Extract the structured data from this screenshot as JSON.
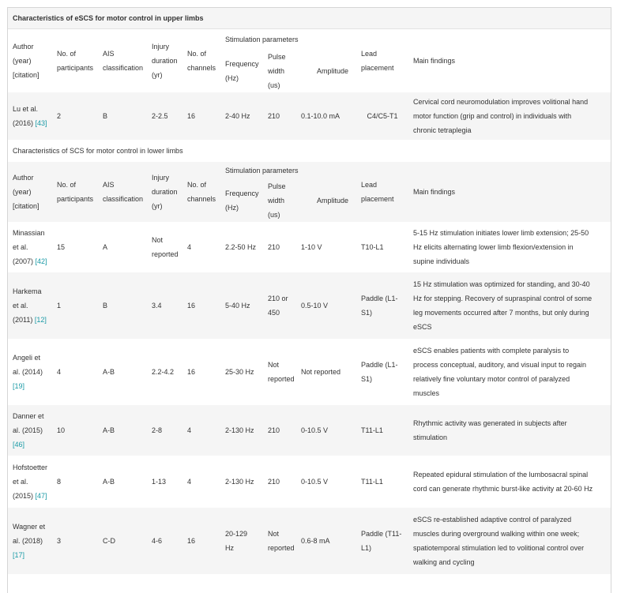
{
  "tables": [
    {
      "title": "Characteristics of eSCS for motor control in upper limbs",
      "headers": {
        "author": [
          "Author",
          "(year)",
          "[citation]"
        ],
        "participants": [
          "No. of",
          "participants"
        ],
        "ais": [
          "AIS",
          "classification"
        ],
        "duration": [
          "Injury",
          "duration",
          "(yr)"
        ],
        "channels": [
          "No. of",
          "channels"
        ],
        "stim": "Stimulation parameters",
        "frequency": [
          "Frequency",
          "(Hz)"
        ],
        "pulse": [
          "Pulse width",
          "(us)"
        ],
        "amplitude": "Amplitude",
        "lead": [
          "Lead",
          "placement"
        ],
        "findings": "Main findings"
      },
      "rows": [
        {
          "author": [
            "Lu et al.",
            "(2016) "
          ],
          "ref": "[43]",
          "participants": "2",
          "ais": "B",
          "duration": "2-2.5",
          "channels": "16",
          "frequency": "2-40 Hz",
          "pulse": [
            "210"
          ],
          "amplitude": "0.1-10.0 mA",
          "lead": [
            "C4/C5-T1"
          ],
          "findings": [
            "Cervical cord neuromodulation improves volitional hand",
            "motor function (grip and control) in individuals with",
            "chronic tetraplegia"
          ]
        }
      ]
    },
    {
      "title": "Characteristics of SCS for motor control in lower limbs",
      "headers": {
        "author": [
          "Author",
          "(year)",
          "[citation]"
        ],
        "participants": [
          "No. of",
          "participants"
        ],
        "ais": [
          "AIS",
          "classification"
        ],
        "duration": [
          "Injury",
          "duration",
          "(yr)"
        ],
        "channels": [
          "No. of",
          "channels"
        ],
        "stim": "Stimulation parameters",
        "frequency": [
          "Frequency",
          "(Hz)"
        ],
        "pulse": [
          "Pulse width",
          "(us)"
        ],
        "amplitude": "Amplitude",
        "lead": [
          "Lead",
          "placement"
        ],
        "findings": "Main findings"
      },
      "rows": [
        {
          "author": [
            "Minassian",
            "et al.",
            "(2007) "
          ],
          "ref": "[42]",
          "participants": "15",
          "ais": "A",
          "duration": [
            "Not",
            "reported"
          ],
          "channels": "4",
          "frequency": "2.2-50 Hz",
          "pulse": [
            "210"
          ],
          "amplitude": "1-10 V",
          "lead": [
            "T10-L1"
          ],
          "findings": [
            "5-15 Hz stimulation initiates lower limb extension; 25-50",
            "Hz elicits alternating lower limb flexion/extension in",
            "supine individuals"
          ]
        },
        {
          "author": [
            "Harkema",
            "et al.",
            "(2011) "
          ],
          "ref": "[12]",
          "participants": "1",
          "ais": "B",
          "duration": [
            "3.4"
          ],
          "channels": "16",
          "frequency": "5-40 Hz",
          "pulse": [
            "210 or",
            "450"
          ],
          "amplitude": "0.5-10 V",
          "lead": [
            "Paddle (L1-",
            "S1)"
          ],
          "findings": [
            "15 Hz stimulation was optimized for standing, and 30-40",
            "Hz for stepping. Recovery of supraspinal control of some",
            "leg movements occurred after 7 months, but only during",
            "eSCS"
          ]
        },
        {
          "author": [
            "Angeli et",
            "al. (2014)"
          ],
          "ref": "[19]",
          "participants": "4",
          "ais": "A-B",
          "duration": [
            "2.2-4.2"
          ],
          "channels": "16",
          "frequency": "25-30 Hz",
          "pulse": [
            "Not",
            "reported"
          ],
          "amplitude": "Not reported",
          "lead": [
            "Paddle (L1-",
            "S1)"
          ],
          "findings": [
            "eSCS enables patients with complete paralysis to",
            "process conceptual, auditory, and visual input to regain",
            "relatively fine voluntary motor control of paralyzed",
            "muscles"
          ]
        },
        {
          "author": [
            "Danner et",
            "al. (2015)"
          ],
          "ref": "[46]",
          "participants": "10",
          "ais": "A-B",
          "duration": [
            "2-8"
          ],
          "channels": "4",
          "frequency": "2-130 Hz",
          "pulse": [
            "210"
          ],
          "amplitude": "0-10.5 V",
          "lead": [
            "T11-L1"
          ],
          "findings": [
            "Rhythmic activity was generated in subjects after",
            "stimulation"
          ]
        },
        {
          "author": [
            "Hofstoetter",
            "et al.",
            "(2015) "
          ],
          "ref": "[47]",
          "participants": "8",
          "ais": "A-B",
          "duration": [
            "1-13"
          ],
          "channels": "4",
          "frequency": "2-130 Hz",
          "pulse": [
            "210"
          ],
          "amplitude": "0-10.5 V",
          "lead": [
            "T11-L1"
          ],
          "findings": [
            "Repeated epidural stimulation of the lumbosacral spinal",
            "cord can generate rhythmic burst-like activity at 20-60 Hz"
          ]
        },
        {
          "author": [
            "Wagner et",
            "al. (2018)"
          ],
          "ref": "[17]",
          "participants": "3",
          "ais": "C-D",
          "duration": [
            "4-6"
          ],
          "channels": "16",
          "frequency": [
            "20-129",
            "Hz"
          ],
          "pulse": [
            "Not",
            "reported"
          ],
          "amplitude": "0.6-8 mA",
          "lead": [
            "Paddle (T11-",
            "L1)"
          ],
          "findings": [
            "eSCS re-established adaptive control of paralyzed",
            "muscles during overground walking within one week;",
            "spatiotemporal stimulation led to volitional control over",
            "walking and cycling"
          ]
        }
      ]
    }
  ]
}
